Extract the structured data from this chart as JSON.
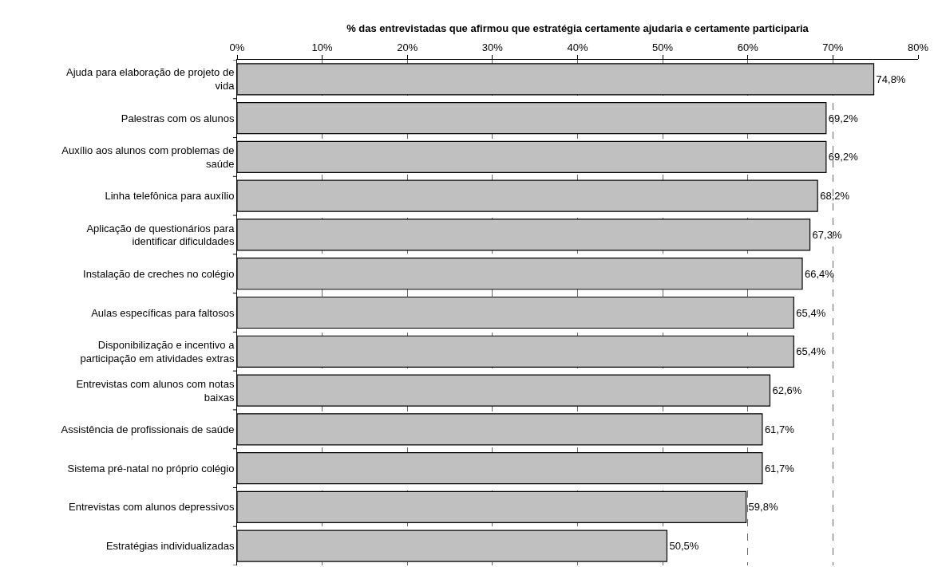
{
  "chart_data": {
    "type": "bar",
    "orientation": "horizontal",
    "xlabel": "% das entrevistadas que afirmou que estratégia certamente ajudaria e certamente participaria",
    "categories": [
      "Ajuda para elaboração de projeto de vida",
      "Palestras com os alunos",
      "Auxílio aos alunos com problemas de saúde",
      "Linha telefônica para auxílio",
      "Aplicação de questionários para identificar dificuldades",
      "Instalação de creches no colégio",
      "Aulas específicas para faltosos",
      "Disponibilização e incentivo a participação em atividades extras",
      "Entrevistas com alunos com notas baixas",
      "Assistência de profissionais de saúde",
      "Sistema pré-natal no próprio colégio",
      "Entrevistas com alunos depressivos",
      "Estratégias individualizadas"
    ],
    "values": [
      74.8,
      69.2,
      69.2,
      68.2,
      67.3,
      66.4,
      65.4,
      65.4,
      62.6,
      61.7,
      61.7,
      59.8,
      50.5
    ],
    "value_labels": [
      "74,8%",
      "69,2%",
      "69,2%",
      "68,2%",
      "67,3%",
      "66,4%",
      "65,4%",
      "65,4%",
      "62,6%",
      "61,7%",
      "61,7%",
      "59,8%",
      "50,5%"
    ],
    "color": "#c0c0c0",
    "xlim": [
      0,
      80
    ],
    "xticks": [
      {
        "value": 0,
        "label": "0%"
      },
      {
        "value": 10,
        "label": "10%"
      },
      {
        "value": 20,
        "label": "20%"
      },
      {
        "value": 30,
        "label": "30%"
      },
      {
        "value": 40,
        "label": "40%"
      },
      {
        "value": 50,
        "label": "50%"
      },
      {
        "value": 60,
        "label": "60%"
      },
      {
        "value": 70,
        "label": "70%"
      },
      {
        "value": 80,
        "label": "80%"
      }
    ],
    "grid": "x",
    "line_style": "dashed"
  }
}
